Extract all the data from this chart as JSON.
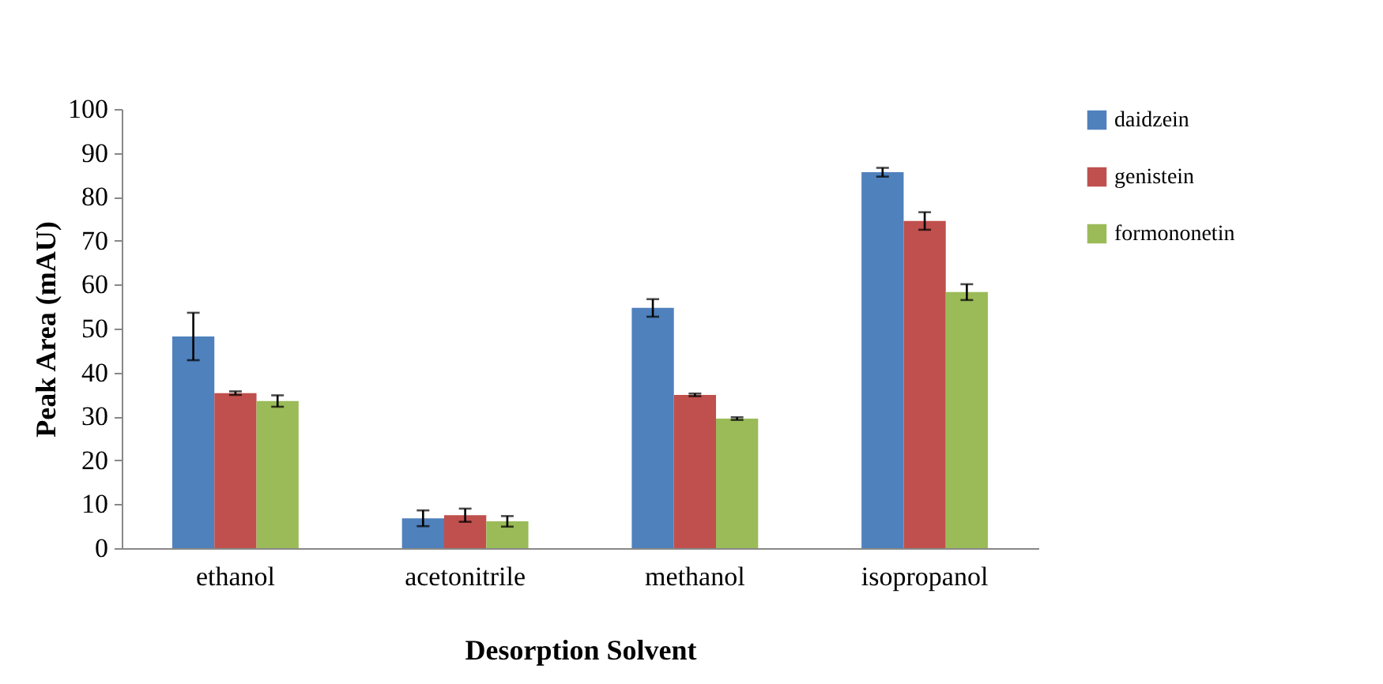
{
  "chart_data": {
    "type": "bar",
    "xlabel": "Desorption Solvent",
    "ylabel": "Peak Area (mAU)",
    "categories": [
      "ethanol",
      "acetonitrile",
      "methanol",
      "isopropanol"
    ],
    "series": [
      {
        "name": "daidzein",
        "color": "#4f81bd",
        "values": [
          48.2,
          6.8,
          54.7,
          85.6
        ],
        "errors": [
          5.4,
          1.8,
          2.0,
          1.0
        ]
      },
      {
        "name": "genistein",
        "color": "#c0504d",
        "values": [
          35.3,
          7.5,
          34.9,
          74.5
        ],
        "errors": [
          0.4,
          1.5,
          0.3,
          2.0
        ]
      },
      {
        "name": "formononetin",
        "color": "#9bbb59",
        "values": [
          33.5,
          6.1,
          29.5,
          58.3
        ],
        "errors": [
          1.3,
          1.2,
          0.3,
          1.8
        ]
      }
    ],
    "ylim": [
      0,
      100
    ],
    "yticks": [
      0,
      10,
      20,
      30,
      40,
      50,
      60,
      70,
      80,
      90,
      100
    ],
    "grid": false,
    "legend": "top right"
  }
}
